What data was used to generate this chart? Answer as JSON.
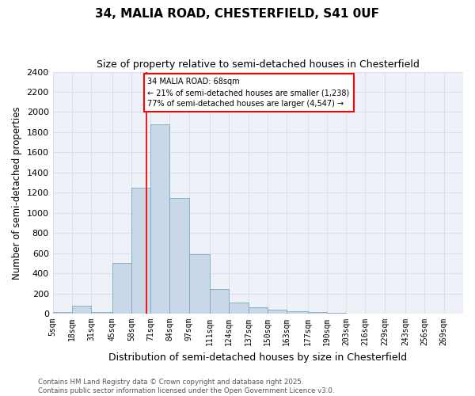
{
  "title1": "34, MALIA ROAD, CHESTERFIELD, S41 0UF",
  "title2": "Size of property relative to semi-detached houses in Chesterfield",
  "xlabel": "Distribution of semi-detached houses by size in Chesterfield",
  "ylabel": "Number of semi-detached properties",
  "footer1": "Contains HM Land Registry data © Crown copyright and database right 2025.",
  "footer2": "Contains public sector information licensed under the Open Government Licence v3.0.",
  "bar_color": "#c8d8e8",
  "bar_edge_color": "#7aaabb",
  "grid_color": "#d8e0ec",
  "bg_color": "#eef2f8",
  "annotation_line1": "34 MALIA ROAD: 68sqm",
  "annotation_line2": "← 21% of semi-detached houses are smaller (1,238)",
  "annotation_line3": "77% of semi-detached houses are larger (4,547) →",
  "vline_color": "red",
  "vline_x": 68,
  "categories": [
    "5sqm",
    "18sqm",
    "31sqm",
    "45sqm",
    "58sqm",
    "71sqm",
    "84sqm",
    "97sqm",
    "111sqm",
    "124sqm",
    "137sqm",
    "150sqm",
    "163sqm",
    "177sqm",
    "190sqm",
    "203sqm",
    "216sqm",
    "229sqm",
    "243sqm",
    "256sqm",
    "269sqm"
  ],
  "bin_edges": [
    5,
    18,
    31,
    45,
    58,
    71,
    84,
    97,
    111,
    124,
    137,
    150,
    163,
    177,
    190,
    203,
    216,
    229,
    243,
    256,
    269,
    282
  ],
  "values": [
    15,
    80,
    20,
    500,
    1250,
    1875,
    1150,
    590,
    245,
    110,
    60,
    40,
    25,
    15,
    10,
    0,
    0,
    0,
    0,
    0,
    0
  ],
  "ylim": [
    0,
    2400
  ],
  "yticks": [
    0,
    200,
    400,
    600,
    800,
    1000,
    1200,
    1400,
    1600,
    1800,
    2000,
    2200,
    2400
  ]
}
